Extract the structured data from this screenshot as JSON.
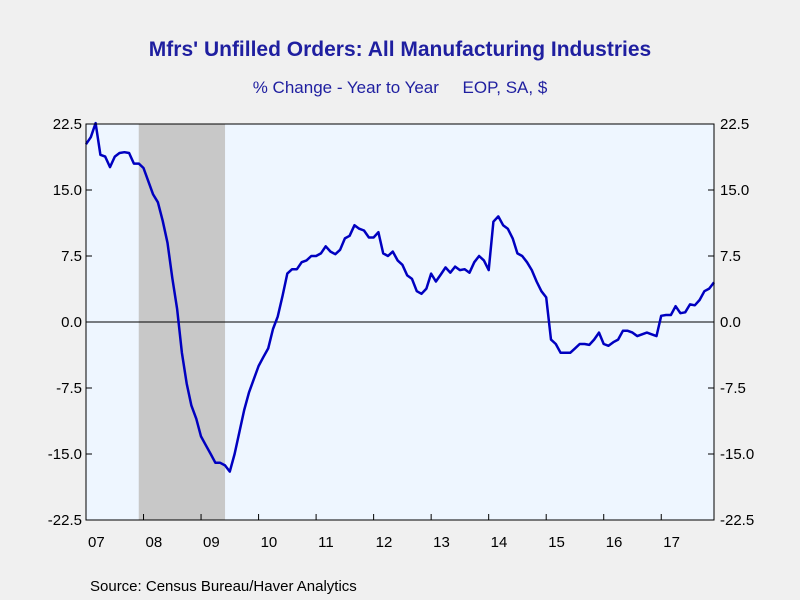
{
  "chart_data": {
    "type": "line",
    "title": "Mfrs' Unfilled Orders: All Manufacturing Industries",
    "subtitle": "% Change - Year to Year     EOP, SA, $",
    "source": "Source:  Census Bureau/Haver Analytics",
    "ylim": [
      -22.5,
      22.5
    ],
    "y_ticks": [
      "22.5",
      "15.0",
      "7.5",
      "0.0",
      "-7.5",
      "-15.0",
      "-22.5"
    ],
    "y_tick_values": [
      22.5,
      15.0,
      7.5,
      0.0,
      -7.5,
      -15.0,
      -22.5
    ],
    "xlim": [
      2007.0,
      2017.917
    ],
    "x_ticks": [
      "07",
      "08",
      "09",
      "10",
      "11",
      "12",
      "13",
      "14",
      "15",
      "16",
      "17"
    ],
    "x_tick_values": [
      2007,
      2008,
      2009,
      2010,
      2011,
      2012,
      2013,
      2014,
      2015,
      2016,
      2017
    ],
    "recession": [
      2007.917,
      2009.417
    ],
    "grid": false,
    "colors": {
      "line": "#0000c0",
      "recession": "#c8c8c8",
      "plot_bg": "#eef6ff",
      "page_bg": "#f0f0f0"
    },
    "series": [
      {
        "x": [
          2007.0,
          2007.083,
          2007.167,
          2007.25,
          2007.333,
          2007.417,
          2007.5,
          2007.583,
          2007.667,
          2007.75,
          2007.833,
          2007.917,
          2008.0,
          2008.083,
          2008.167,
          2008.25,
          2008.333,
          2008.417,
          2008.5,
          2008.583,
          2008.667,
          2008.75,
          2008.833,
          2008.917,
          2009.0,
          2009.083,
          2009.167,
          2009.25,
          2009.333,
          2009.417,
          2009.5,
          2009.583,
          2009.667,
          2009.75,
          2009.833,
          2009.917,
          2010.0,
          2010.083,
          2010.167,
          2010.25,
          2010.333,
          2010.417,
          2010.5,
          2010.583,
          2010.667,
          2010.75,
          2010.833,
          2010.917,
          2011.0,
          2011.083,
          2011.167,
          2011.25,
          2011.333,
          2011.417,
          2011.5,
          2011.583,
          2011.667,
          2011.75,
          2011.833,
          2011.917,
          2012.0,
          2012.083,
          2012.167,
          2012.25,
          2012.333,
          2012.417,
          2012.5,
          2012.583,
          2012.667,
          2012.75,
          2012.833,
          2012.917,
          2013.0,
          2013.083,
          2013.167,
          2013.25,
          2013.333,
          2013.417,
          2013.5,
          2013.583,
          2013.667,
          2013.75,
          2013.833,
          2013.917,
          2014.0,
          2014.083,
          2014.167,
          2014.25,
          2014.333,
          2014.417,
          2014.5,
          2014.583,
          2014.667,
          2014.75,
          2014.833,
          2014.917,
          2015.0,
          2015.083,
          2015.167,
          2015.25,
          2015.333,
          2015.417,
          2015.5,
          2015.583,
          2015.667,
          2015.75,
          2015.833,
          2015.917,
          2016.0,
          2016.083,
          2016.167,
          2016.25,
          2016.333,
          2016.417,
          2016.5,
          2016.583,
          2016.667,
          2016.75,
          2016.833,
          2016.917,
          2017.0,
          2017.083,
          2017.167,
          2017.25,
          2017.333,
          2017.417,
          2017.5,
          2017.583,
          2017.667,
          2017.75,
          2017.833,
          2017.917
        ],
        "values": [
          20.2,
          21.0,
          22.6,
          19.0,
          18.8,
          17.6,
          18.8,
          19.2,
          19.3,
          19.2,
          18.0,
          18.0,
          17.5,
          16.0,
          14.5,
          13.6,
          11.5,
          9.0,
          5.0,
          1.5,
          -3.5,
          -7.0,
          -9.5,
          -11.0,
          -13.0,
          -14.0,
          -15.0,
          -16.0,
          -16.0,
          -16.3,
          -17.0,
          -15.0,
          -12.5,
          -10.0,
          -8.0,
          -6.5,
          -5.0,
          -4.0,
          -3.0,
          -0.8,
          0.6,
          3.0,
          5.5,
          6.0,
          6.0,
          6.8,
          7.0,
          7.5,
          7.5,
          7.8,
          8.6,
          8.0,
          7.7,
          8.2,
          9.5,
          9.8,
          11.0,
          10.6,
          10.4,
          9.6,
          9.6,
          10.2,
          7.8,
          7.5,
          8.0,
          7.0,
          6.5,
          5.3,
          4.9,
          3.5,
          3.2,
          3.8,
          5.5,
          4.6,
          5.4,
          6.2,
          5.6,
          6.3,
          5.9,
          6.0,
          5.6,
          6.8,
          7.5,
          7.0,
          5.9,
          11.4,
          12.0,
          11.0,
          10.6,
          9.5,
          7.8,
          7.5,
          6.8,
          5.9,
          4.6,
          3.5,
          2.8,
          -2.0,
          -2.5,
          -3.5,
          -3.5,
          -3.5,
          -3.0,
          -2.5,
          -2.5,
          -2.6,
          -2.0,
          -1.2,
          -2.5,
          -2.7,
          -2.3,
          -2.0,
          -1.0,
          -1.0,
          -1.2,
          -1.6,
          -1.4,
          -1.2,
          -1.4,
          -1.6,
          0.7,
          0.8,
          0.8,
          1.8,
          1.0,
          1.1,
          2.0,
          1.9,
          2.5,
          3.5,
          3.8,
          4.5
        ]
      }
    ]
  }
}
